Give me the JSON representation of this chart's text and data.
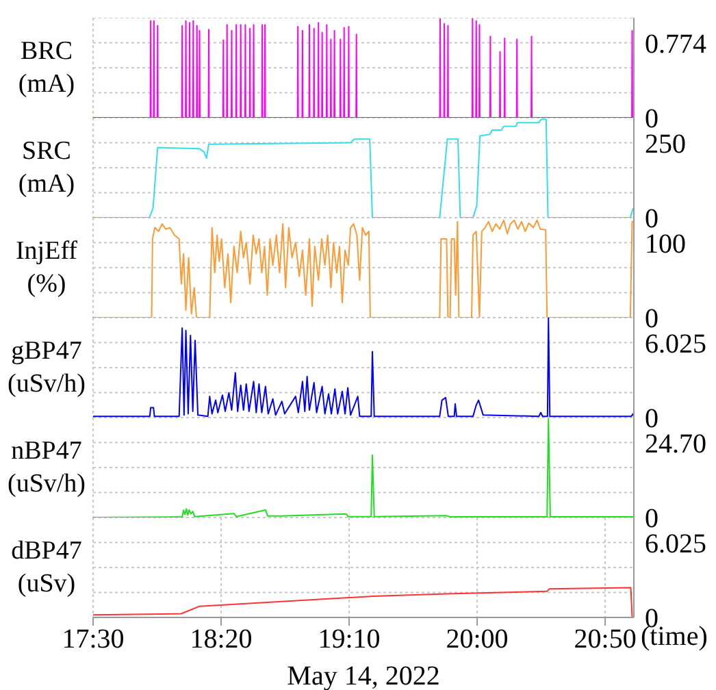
{
  "chart_data": [
    {
      "type": "line",
      "ylabel": "BRC (mA)",
      "xlim": [
        17.5,
        21.02
      ],
      "xticks": [
        {
          "value": 17.5,
          "label": null
        },
        {
          "value": 18.3333,
          "label": null
        },
        {
          "value": 19.1667,
          "label": null
        },
        {
          "value": 20,
          "label": null
        },
        {
          "value": 20.8333,
          "label": null
        }
      ],
      "ylim": [
        0,
        1.032
      ],
      "yticks": [
        0,
        {
          "value": 0.258,
          "label": null
        },
        {
          "value": 0.516,
          "label": null
        },
        0.774
      ],
      "grid": true,
      "tick_labels": "y",
      "series": [
        {
          "color": "#ff00ff",
          "x": [
            17.5,
            17.873,
            17.875,
            17.877,
            17.894,
            17.896,
            17.898,
            17.918,
            17.92,
            17.922,
            18.078,
            18.08,
            18.082,
            18.102,
            18.104,
            18.106,
            18.126,
            18.128,
            18.13,
            18.15,
            18.152,
            18.154,
            18.174,
            18.176,
            18.178,
            18.191,
            18.193,
            18.195,
            18.251,
            18.253,
            18.255,
            18.346,
            18.348,
            18.35,
            18.37,
            18.372,
            18.374,
            18.4,
            18.402,
            18.404,
            18.43,
            18.432,
            18.434,
            18.459,
            18.461,
            18.463,
            18.489,
            18.491,
            18.493,
            18.519,
            18.521,
            18.523,
            18.543,
            18.545,
            18.547,
            18.599,
            18.601,
            18.603,
            18.617,
            18.619,
            18.621,
            18.831,
            18.833,
            18.835,
            18.861,
            18.863,
            18.865,
            18.906,
            18.908,
            18.91,
            18.936,
            18.938,
            18.94,
            18.965,
            18.967,
            18.969,
            18.989,
            18.991,
            18.993,
            19.019,
            19.021,
            19.023,
            19.046,
            19.048,
            19.05,
            19.069,
            19.071,
            19.073,
            19.108,
            19.11,
            19.112,
            19.132,
            19.134,
            19.136,
            19.162,
            19.164,
            19.166,
            19.212,
            19.214,
            19.216,
            19.757,
            19.759,
            19.761,
            19.784,
            19.786,
            19.788,
            19.808,
            19.81,
            19.812,
            19.968,
            19.97,
            19.972,
            19.992,
            19.994,
            19.996,
            20.013,
            20.015,
            20.017,
            20.084,
            20.086,
            20.088,
            20.147,
            20.149,
            20.151,
            20.177,
            20.179,
            20.181,
            20.257,
            20.259,
            20.261,
            20.352,
            20.354,
            20.356,
            21.007,
            21.009,
            21.011,
            21.02
          ],
          "values": [
            0,
            0,
            1.0,
            0,
            0,
            1.0,
            0,
            0,
            0.95,
            0,
            0,
            0.95,
            0,
            0,
            1.0,
            0,
            0,
            0.98,
            0,
            0,
            1.0,
            0,
            0,
            0.95,
            0,
            0,
            0.9,
            0,
            0,
            0.91,
            0,
            0,
            0.8,
            0,
            0,
            0.96,
            0,
            0,
            0.9,
            0,
            0,
            0.96,
            0,
            0,
            0.96,
            0,
            0,
            0.96,
            0,
            0,
            0.92,
            0,
            0,
            0.96,
            0,
            0,
            0.96,
            0,
            0,
            0.96,
            0,
            0,
            0.94,
            0,
            0,
            0.9,
            0,
            0,
            0.96,
            0,
            0,
            0.92,
            0,
            0,
            0.98,
            0,
            0,
            0.88,
            0,
            0,
            0.96,
            0,
            0,
            0.81,
            0,
            0,
            0.9,
            0,
            0,
            0.81,
            0,
            0,
            0.93,
            0,
            0,
            0.94,
            0,
            0,
            0.86,
            0,
            0,
            1.02,
            0,
            0,
            0.97,
            0,
            0,
            0.95,
            0,
            0,
            1.02,
            0,
            0,
            1.0,
            0,
            0,
            0.96,
            0,
            0,
            0.84,
            0,
            0,
            0.68,
            0,
            0,
            0.82,
            0,
            0,
            0.81,
            0,
            0,
            0.84,
            0,
            0,
            0.9,
            0,
            0
          ]
        }
      ]
    },
    {
      "type": "line",
      "ylabel": "SRC (mA)",
      "xlim": [
        17.5,
        21.02
      ],
      "xticks": [
        {
          "value": 17.5,
          "label": null
        },
        {
          "value": 18.3333,
          "label": null
        },
        {
          "value": 19.1667,
          "label": null
        },
        {
          "value": 20,
          "label": null
        },
        {
          "value": 20.8333,
          "label": null
        }
      ],
      "ylim": [
        0,
        333.3
      ],
      "yticks": [
        0,
        {
          "value": 83.33,
          "label": null
        },
        {
          "value": 166.67,
          "label": null
        },
        250
      ],
      "grid": true,
      "tick_labels": "y",
      "series": [
        {
          "color": "#33ddee",
          "x": [
            17.5,
            17.866,
            17.89,
            17.92,
            18.193,
            18.223,
            18.238,
            18.253,
            19.176,
            19.2,
            19.301,
            19.318,
            19.756,
            19.806,
            19.875,
            19.89,
            19.973,
            19.997,
            20.018,
            20.083,
            20.098,
            20.158,
            20.173,
            20.253,
            20.262,
            20.402,
            20.417,
            20.449,
            20.461,
            20.997,
            21.015,
            21.02
          ],
          "values": [
            0,
            0,
            31,
            234,
            230,
            219,
            198,
            245,
            250,
            262,
            262,
            0,
            0,
            262,
            262,
            0,
            0,
            39,
            273,
            278,
            292,
            292,
            305,
            305,
            317,
            317,
            328,
            328,
            0,
            0,
            31,
            31
          ]
        }
      ]
    },
    {
      "type": "line",
      "ylabel": "InjEff (%)",
      "xlim": [
        17.5,
        21.02
      ],
      "xticks": [
        {
          "value": 17.5,
          "label": null
        },
        {
          "value": 18.3333,
          "label": null
        },
        {
          "value": 19.1667,
          "label": null
        },
        {
          "value": 20,
          "label": null
        },
        {
          "value": 20.8333,
          "label": null
        }
      ],
      "ylim": [
        0,
        133.3
      ],
      "yticks": [
        0,
        {
          "value": 33.33,
          "label": null
        },
        {
          "value": 66.67,
          "label": null
        },
        100
      ],
      "grid": true,
      "tick_labels": "y",
      "series": [
        {
          "color": "#ff9933",
          "x": [
            17.5,
            17.881,
            17.887,
            17.902,
            17.926,
            17.949,
            17.973,
            18.0,
            18.03,
            18.06,
            18.074,
            18.089,
            18.104,
            18.122,
            18.14,
            18.158,
            18.173,
            18.259,
            18.274,
            18.292,
            18.307,
            18.321,
            18.336,
            18.357,
            18.378,
            18.396,
            18.417,
            18.438,
            18.461,
            18.479,
            18.497,
            18.521,
            18.542,
            18.562,
            18.58,
            18.598,
            18.616,
            18.634,
            18.652,
            18.67,
            18.693,
            18.714,
            18.735,
            18.753,
            18.774,
            18.795,
            18.818,
            18.842,
            18.863,
            18.884,
            18.908,
            18.926,
            18.943,
            18.967,
            18.988,
            19.009,
            19.027,
            19.048,
            19.065,
            19.086,
            19.104,
            19.122,
            19.14,
            19.161,
            19.176,
            19.196,
            19.217,
            19.235,
            19.253,
            19.274,
            19.295,
            19.304,
            19.756,
            19.765,
            19.801,
            19.81,
            19.824,
            19.833,
            19.851,
            19.86,
            19.872,
            19.881,
            19.964,
            19.973,
            19.994,
            20.015,
            20.03,
            20.051,
            20.074,
            20.098,
            20.122,
            20.146,
            20.173,
            20.196,
            20.217,
            20.241,
            20.265,
            20.289,
            20.313,
            20.336,
            20.366,
            20.39,
            20.411,
            20.446,
            20.455,
            20.997,
            21.009,
            21.02
          ],
          "values": [
            0,
            0,
            105,
            120,
            115,
            125,
            118,
            120,
            110,
            105,
            45,
            85,
            10,
            80,
            5,
            40,
            0,
            0,
            120,
            60,
            110,
            75,
            105,
            40,
            85,
            20,
            95,
            60,
            115,
            80,
            100,
            45,
            110,
            85,
            105,
            60,
            95,
            30,
            105,
            70,
            110,
            60,
            125,
            40,
            120,
            80,
            100,
            55,
            90,
            30,
            105,
            15,
            95,
            50,
            105,
            70,
            110,
            40,
            100,
            60,
            95,
            20,
            90,
            70,
            120,
            125,
            110,
            50,
            120,
            110,
            115,
            0,
            0,
            105,
            105,
            0,
            0,
            105,
            105,
            30,
            128,
            0,
            0,
            110,
            115,
            0,
            115,
            120,
            128,
            115,
            125,
            118,
            130,
            112,
            125,
            130,
            118,
            128,
            115,
            126,
            120,
            130,
            118,
            117,
            0,
            0,
            128,
            128
          ]
        }
      ]
    },
    {
      "type": "line",
      "ylabel": "gBP47 (uSv/h)",
      "xlim": [
        17.5,
        21.02
      ],
      "xticks": [
        {
          "value": 17.5,
          "label": null
        },
        {
          "value": 18.3333,
          "label": null
        },
        {
          "value": 19.1667,
          "label": null
        },
        {
          "value": 20,
          "label": null
        },
        {
          "value": 20.8333,
          "label": null
        }
      ],
      "ylim": [
        0,
        8.033
      ],
      "yticks": [
        0,
        {
          "value": 2.008,
          "label": null
        },
        {
          "value": 4.017,
          "label": null
        },
        6.025
      ],
      "grid": true,
      "tick_labels": "y",
      "series": [
        {
          "color": "#0000ff",
          "x": [
            17.5,
            17.869,
            17.875,
            17.893,
            17.899,
            18.06,
            18.08,
            18.092,
            18.104,
            18.119,
            18.134,
            18.149,
            18.164,
            18.182,
            18.247,
            18.259,
            18.274,
            18.298,
            18.312,
            18.342,
            18.36,
            18.384,
            18.402,
            18.426,
            18.441,
            18.461,
            18.479,
            18.497,
            18.515,
            18.545,
            18.562,
            18.58,
            18.598,
            18.622,
            18.64,
            18.67,
            18.688,
            18.729,
            18.747,
            18.818,
            18.836,
            18.863,
            18.878,
            18.893,
            18.908,
            18.938,
            18.955,
            18.991,
            19.009,
            19.033,
            19.051,
            19.074,
            19.092,
            19.122,
            19.14,
            19.158,
            19.176,
            19.223,
            19.235,
            19.31,
            19.318,
            19.33,
            19.756,
            19.771,
            19.795,
            19.812,
            19.851,
            19.857,
            19.866,
            19.973,
            19.994,
            20.009,
            20.039,
            20.402,
            20.414,
            20.426,
            20.458,
            20.464,
            20.473,
            21.003,
            21.015,
            21.02
          ],
          "values": [
            0.1,
            0.1,
            0.8,
            0.8,
            0.1,
            0.1,
            7.2,
            0.2,
            7.0,
            0.3,
            6.6,
            0.5,
            6.2,
            0.2,
            0.1,
            1.7,
            0.3,
            1.4,
            0.4,
            1.8,
            0.5,
            2.0,
            0.6,
            3.6,
            0.5,
            2.6,
            0.6,
            2.7,
            0.5,
            2.9,
            0.4,
            2.7,
            0.4,
            2.5,
            0.3,
            1.5,
            0.2,
            1.3,
            0.3,
            1.7,
            0.4,
            2.9,
            0.5,
            3.3,
            0.6,
            2.8,
            0.4,
            2.5,
            0.3,
            1.9,
            0.3,
            2.3,
            0.3,
            2.1,
            0.3,
            2.4,
            0.2,
            1.7,
            0.1,
            0.1,
            5.3,
            0.1,
            0.1,
            1.4,
            1.6,
            0.1,
            0.1,
            1.1,
            0.1,
            0.1,
            1.0,
            1.4,
            0.2,
            0.1,
            0.4,
            0.1,
            0.1,
            8.0,
            0.1,
            0.1,
            0.3,
            0.1
          ]
        }
      ]
    },
    {
      "type": "line",
      "ylabel": "nBP47 (uSv/h)",
      "xlim": [
        17.5,
        21.02
      ],
      "xticks": [
        {
          "value": 17.5,
          "label": null
        },
        {
          "value": 18.3333,
          "label": null
        },
        {
          "value": 19.1667,
          "label": null
        },
        {
          "value": 20,
          "label": null
        },
        {
          "value": 20.8333,
          "label": null
        }
      ],
      "ylim": [
        0,
        32.93
      ],
      "yticks": [
        0,
        {
          "value": 8.233,
          "label": null
        },
        {
          "value": 16.467,
          "label": null
        },
        {
          "value": 24.7,
          "label": "24.70"
        }
      ],
      "grid": true,
      "tick_labels": "y",
      "series": [
        {
          "color": "#22dd22",
          "x": [
            17.5,
            18.08,
            18.089,
            18.098,
            18.107,
            18.116,
            18.125,
            18.137,
            18.149,
            18.161,
            18.417,
            18.432,
            18.622,
            18.637,
            18.729,
            19.146,
            19.161,
            19.31,
            19.318,
            19.33,
            19.798,
            19.827,
            20.455,
            20.464,
            20.476,
            21.02
          ],
          "values": [
            0,
            0.2,
            2.4,
            1.0,
            2.8,
            0.8,
            2.5,
            1.2,
            2.0,
            0.3,
            1.3,
            0.3,
            2.5,
            0.5,
            0.5,
            1.2,
            0.3,
            0.3,
            20.5,
            0.3,
            0.6,
            0.2,
            0.2,
            32.5,
            0.2,
            0.2
          ]
        }
      ]
    },
    {
      "type": "line",
      "ylabel": "dBP47 (uSv)",
      "xlabel": "(time)",
      "annotations": [
        "May 14, 2022"
      ],
      "xlim": [
        17.5,
        21.02
      ],
      "xticks": [
        {
          "value": 17.5,
          "label": "17:30"
        },
        {
          "value": 18.3333,
          "label": "18:20"
        },
        {
          "value": 19.1667,
          "label": "19:10"
        },
        {
          "value": 20,
          "label": "20:00"
        },
        {
          "value": 20.8333,
          "label": "20:50"
        }
      ],
      "ylim": [
        0,
        8.033
      ],
      "yticks": [
        0,
        {
          "value": 2.008,
          "label": null
        },
        {
          "value": 4.017,
          "label": null
        },
        6.025
      ],
      "grid": true,
      "series": [
        {
          "color": "#ff3333",
          "x": [
            17.5,
            18.074,
            18.193,
            19.176,
            19.324,
            19.8,
            20.455,
            20.47,
            21.0,
            21.009,
            21.02
          ],
          "values": [
            0.2,
            0.3,
            0.9,
            1.6,
            1.7,
            1.9,
            2.1,
            2.3,
            2.4,
            0,
            0
          ]
        }
      ]
    }
  ]
}
